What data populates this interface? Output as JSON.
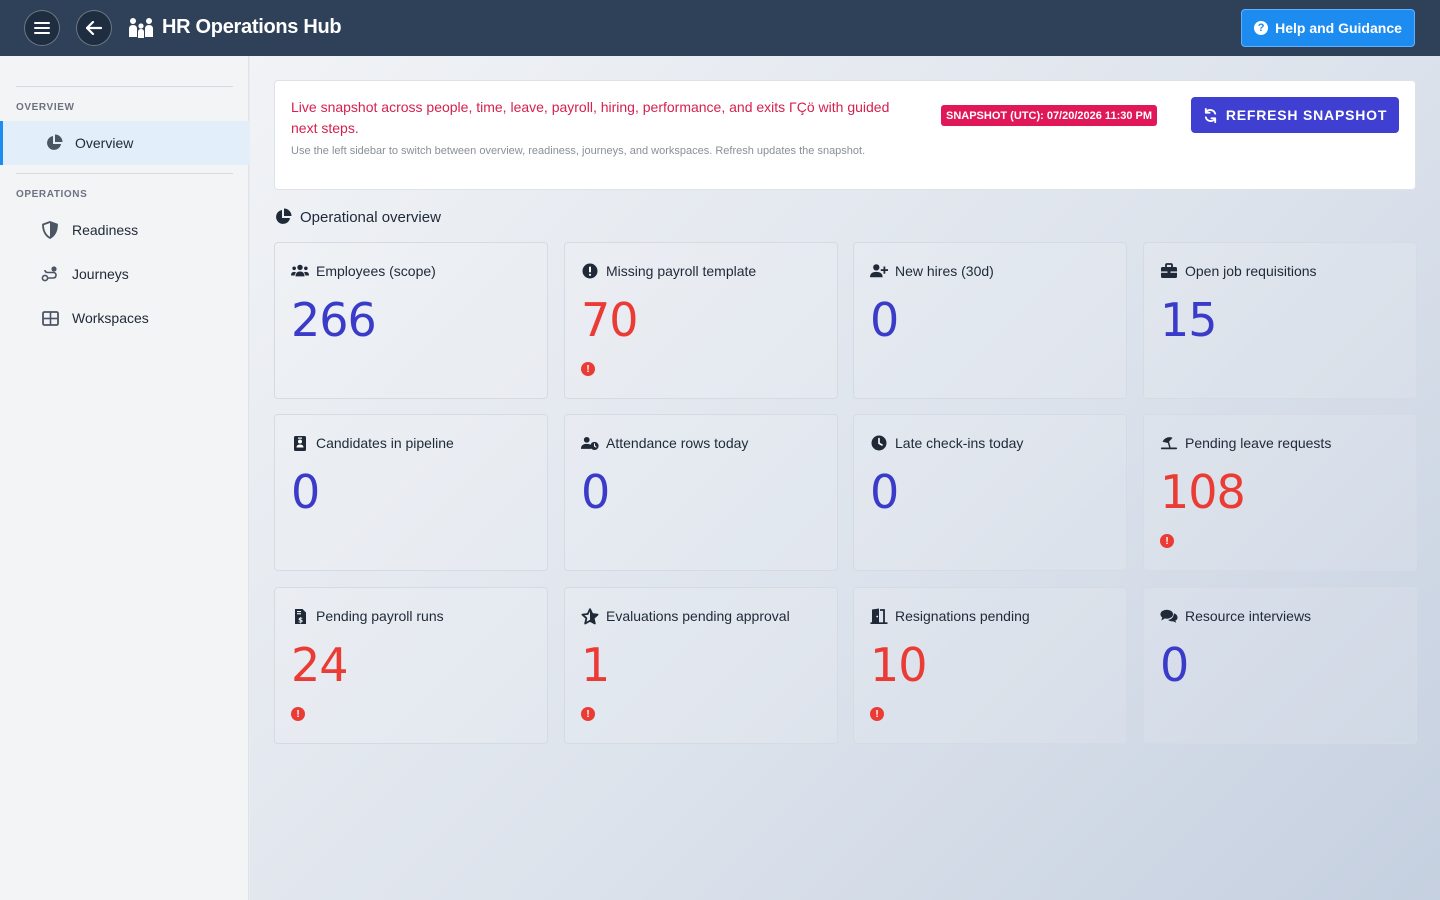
{
  "header": {
    "title": "HR Operations Hub",
    "help_label": "Help and Guidance",
    "menu_icon": "hamburger-icon",
    "back_icon": "arrow-left-icon",
    "brand_icon": "people-icon"
  },
  "sidebar": {
    "sections": [
      {
        "title": "OVERVIEW",
        "items": [
          {
            "label": "Overview",
            "icon": "pie-chart-icon",
            "active": true
          }
        ]
      },
      {
        "title": "OPERATIONS",
        "items": [
          {
            "label": "Readiness",
            "icon": "shield-icon"
          },
          {
            "label": "Journeys",
            "icon": "route-icon"
          },
          {
            "label": "Workspaces",
            "icon": "grid-icon"
          }
        ]
      }
    ]
  },
  "banner": {
    "main_text": "Live snapshot across people, time, leave, payroll, hiring, performance, and exits ΓÇö with guided next steps.",
    "sub_text": "Use the left sidebar to switch between overview, readiness, journeys, and workspaces. Refresh updates the snapshot.",
    "snapshot_label": "SNAPSHOT (UTC): 07/20/2026 11:30 PM",
    "refresh_label": "REFRESH SNAPSHOT"
  },
  "overview": {
    "title": "Operational overview",
    "cards": [
      {
        "label": "Employees (scope)",
        "value": "266",
        "icon": "users-icon",
        "alert": false
      },
      {
        "label": "Missing payroll template",
        "value": "70",
        "icon": "exclamation-circle-icon",
        "alert": true
      },
      {
        "label": "New hires (30d)",
        "value": "0",
        "icon": "user-plus-icon",
        "alert": false
      },
      {
        "label": "Open job requisitions",
        "value": "15",
        "icon": "briefcase-icon",
        "alert": false
      },
      {
        "label": "Candidates in pipeline",
        "value": "0",
        "icon": "id-badge-icon",
        "alert": false
      },
      {
        "label": "Attendance rows today",
        "value": "0",
        "icon": "user-clock-icon",
        "alert": false
      },
      {
        "label": "Late check-ins today",
        "value": "0",
        "icon": "clock-icon",
        "alert": false
      },
      {
        "label": "Pending leave requests",
        "value": "108",
        "icon": "umbrella-beach-icon",
        "alert": true
      },
      {
        "label": "Pending payroll runs",
        "value": "24",
        "icon": "file-invoice-dollar-icon",
        "alert": true
      },
      {
        "label": "Evaluations pending approval",
        "value": "1",
        "icon": "star-icon",
        "alert": true
      },
      {
        "label": "Resignations pending",
        "value": "10",
        "icon": "door-open-icon",
        "alert": true
      },
      {
        "label": "Resource interviews",
        "value": "0",
        "icon": "comments-icon",
        "alert": false
      }
    ]
  },
  "colors": {
    "topbar": "#2f4159",
    "accent": "#3f3fd1",
    "help": "#1d8cf0",
    "alert": "#ea3b35",
    "value": "#3b3bc9",
    "banner_text": "#d6204f",
    "badge": "#e0185a"
  }
}
